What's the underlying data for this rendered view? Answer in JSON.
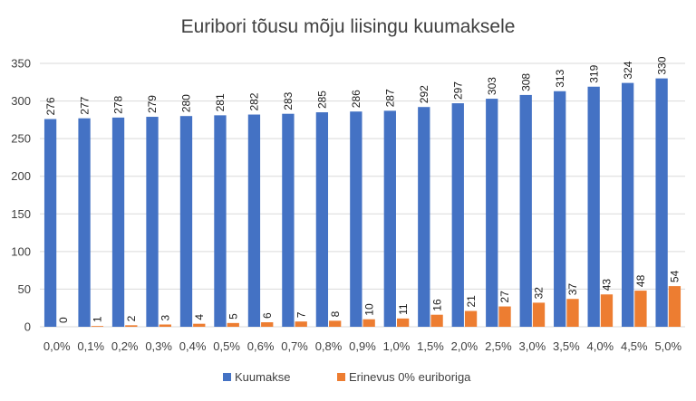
{
  "chart_data": {
    "type": "bar",
    "title": "Euribori tõusu mõju liisingu kuumaksele",
    "xlabel": "",
    "ylabel": "",
    "ylim": [
      0,
      350
    ],
    "yticks": [
      0,
      50,
      100,
      150,
      200,
      250,
      300,
      350
    ],
    "grid": true,
    "legend_position": "bottom",
    "categories": [
      "0,0%",
      "0,1%",
      "0,2%",
      "0,3%",
      "0,4%",
      "0,5%",
      "0,6%",
      "0,7%",
      "0,8%",
      "0,9%",
      "1,0%",
      "1,5%",
      "2,0%",
      "2,5%",
      "3,0%",
      "3,5%",
      "4,0%",
      "4,5%",
      "5,0%"
    ],
    "series": [
      {
        "name": "Kuumakse",
        "color": "#4472C4",
        "values": [
          276,
          277,
          278,
          279,
          280,
          281,
          282,
          283,
          285,
          286,
          287,
          292,
          297,
          303,
          308,
          313,
          319,
          324,
          330
        ]
      },
      {
        "name": "Erinevus 0% euriboriga",
        "color": "#ED7D31",
        "values": [
          0,
          1,
          2,
          3,
          4,
          5,
          6,
          7,
          8,
          10,
          11,
          16,
          21,
          27,
          32,
          37,
          43,
          48,
          54
        ]
      }
    ]
  }
}
